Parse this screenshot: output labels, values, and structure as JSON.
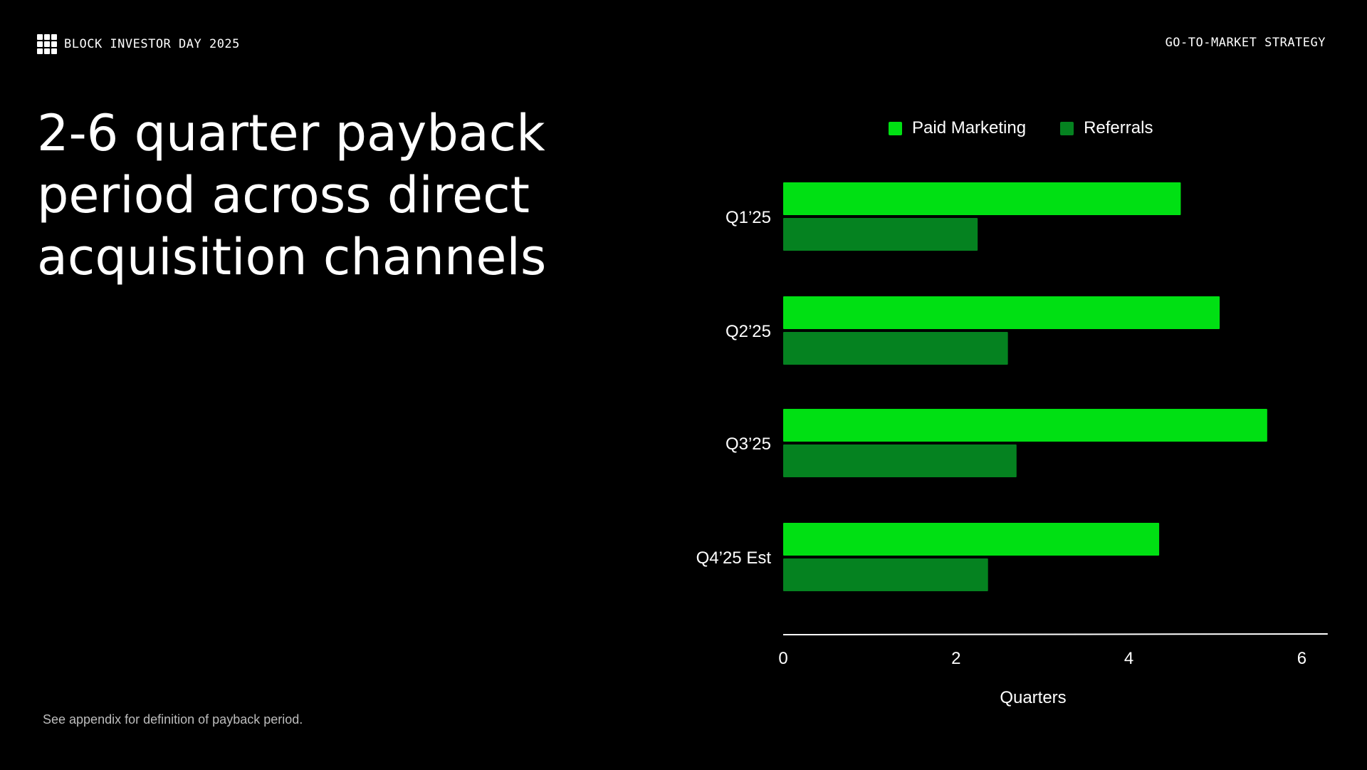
{
  "header": {
    "left_text": "BLOCK INVESTOR DAY 2025",
    "right_text": "GO-TO-MARKET STRATEGY"
  },
  "title": {
    "line1": "2-6 quarter payback",
    "line2": "period across direct",
    "line3": "acquisition channels"
  },
  "footnote": "See appendix for definition of payback period.",
  "colors": {
    "background": "#000000",
    "paid_marketing": "#00E013",
    "referrals": "#058220",
    "text": "#ffffff"
  },
  "chart_data": {
    "type": "bar",
    "orientation": "horizontal",
    "categories": [
      "Q1’25",
      "Q2’25",
      "Q3’25",
      "Q4’25 Est"
    ],
    "series": [
      {
        "name": "Paid Marketing",
        "values": [
          4.6,
          5.05,
          5.6,
          4.35
        ],
        "color": "#00E013"
      },
      {
        "name": "Referrals",
        "values": [
          2.25,
          2.6,
          2.7,
          2.37
        ],
        "color": "#058220"
      }
    ],
    "xlabel": "Quarters",
    "xlim": [
      0,
      6.3
    ],
    "xticks": [
      0,
      2,
      4,
      6
    ],
    "legend_position": "top",
    "grid": false
  }
}
